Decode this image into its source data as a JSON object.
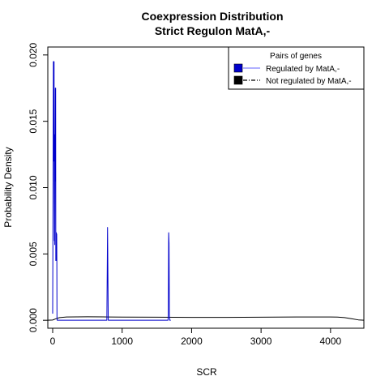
{
  "chart_data": {
    "type": "line",
    "title": "Coexpression Distribution",
    "subtitle": "Strict Regulon MatA,-",
    "xlabel": "SCR",
    "ylabel": "Probability Density",
    "xlim": [
      -70,
      4480
    ],
    "ylim": [
      -0.0006,
      0.0206
    ],
    "xticks": [
      0,
      1000,
      2000,
      3000,
      4000
    ],
    "xtick_labels": [
      "0",
      "1000",
      "2000",
      "3000",
      "4000"
    ],
    "yticks": [
      0.0,
      0.005,
      0.01,
      0.015,
      0.02
    ],
    "ytick_labels": [
      "0.000",
      "0.005",
      "0.010",
      "0.015",
      "0.020"
    ],
    "grid": false,
    "legend": {
      "title": "Pairs of genes",
      "position": "top-right",
      "entries": [
        {
          "label": "Regulated by  MatA,-",
          "color": "#0000cc",
          "line_color": "#8080ff",
          "line_style": "solid"
        },
        {
          "label": "Not regulated by  MatA,-",
          "color": "#000000",
          "line_color": "#000000",
          "line_style": "dashdot"
        }
      ]
    },
    "series": [
      {
        "name": "Regulated by  MatA,-",
        "color": "#0000cc",
        "x": [
          0,
          5,
          10,
          15,
          18,
          20,
          22,
          25,
          28,
          30,
          33,
          35,
          38,
          40,
          43,
          45,
          48,
          50,
          53,
          55,
          58,
          60,
          62,
          65,
          68,
          70,
          72,
          75,
          80,
          85,
          100,
          780,
          785,
          790,
          795,
          800,
          805,
          810,
          1660,
          1665,
          1670,
          1675,
          1680,
          1685,
          1690,
          1700
        ],
        "y": [
          0.0005,
          0.009,
          0.0195,
          0.012,
          0.018,
          0.0195,
          0.0105,
          0.006,
          0.012,
          0.0057,
          0.014,
          0.0125,
          0.0175,
          0.0105,
          0.0175,
          0.0045,
          0.0062,
          0.0048,
          0.0066,
          0.0045,
          0.0065,
          0.0044,
          0.0002,
          0.0,
          0.0,
          0.0,
          0.0,
          0.0,
          0.0,
          0.0,
          0.0,
          0.0,
          0.0035,
          0.007,
          0.0035,
          0.0,
          0.0,
          0.0,
          0.0,
          0.0004,
          0.0066,
          0.0058,
          0.0004,
          0.0,
          0.0,
          0.0
        ]
      },
      {
        "name": "Not regulated by  MatA,-",
        "color": "#000000",
        "x": [
          -70,
          0,
          50,
          100,
          200,
          500,
          800,
          1000,
          1500,
          2000,
          2500,
          3000,
          3500,
          4000,
          4100,
          4200,
          4300,
          4400,
          4480
        ],
        "y": [
          0.0,
          2e-05,
          0.00012,
          0.0002,
          0.00025,
          0.00026,
          0.00025,
          0.00024,
          0.00023,
          0.00022,
          0.00022,
          0.00023,
          0.00025,
          0.00025,
          0.00024,
          0.0002,
          0.00012,
          3e-05,
          0.0
        ]
      }
    ]
  }
}
